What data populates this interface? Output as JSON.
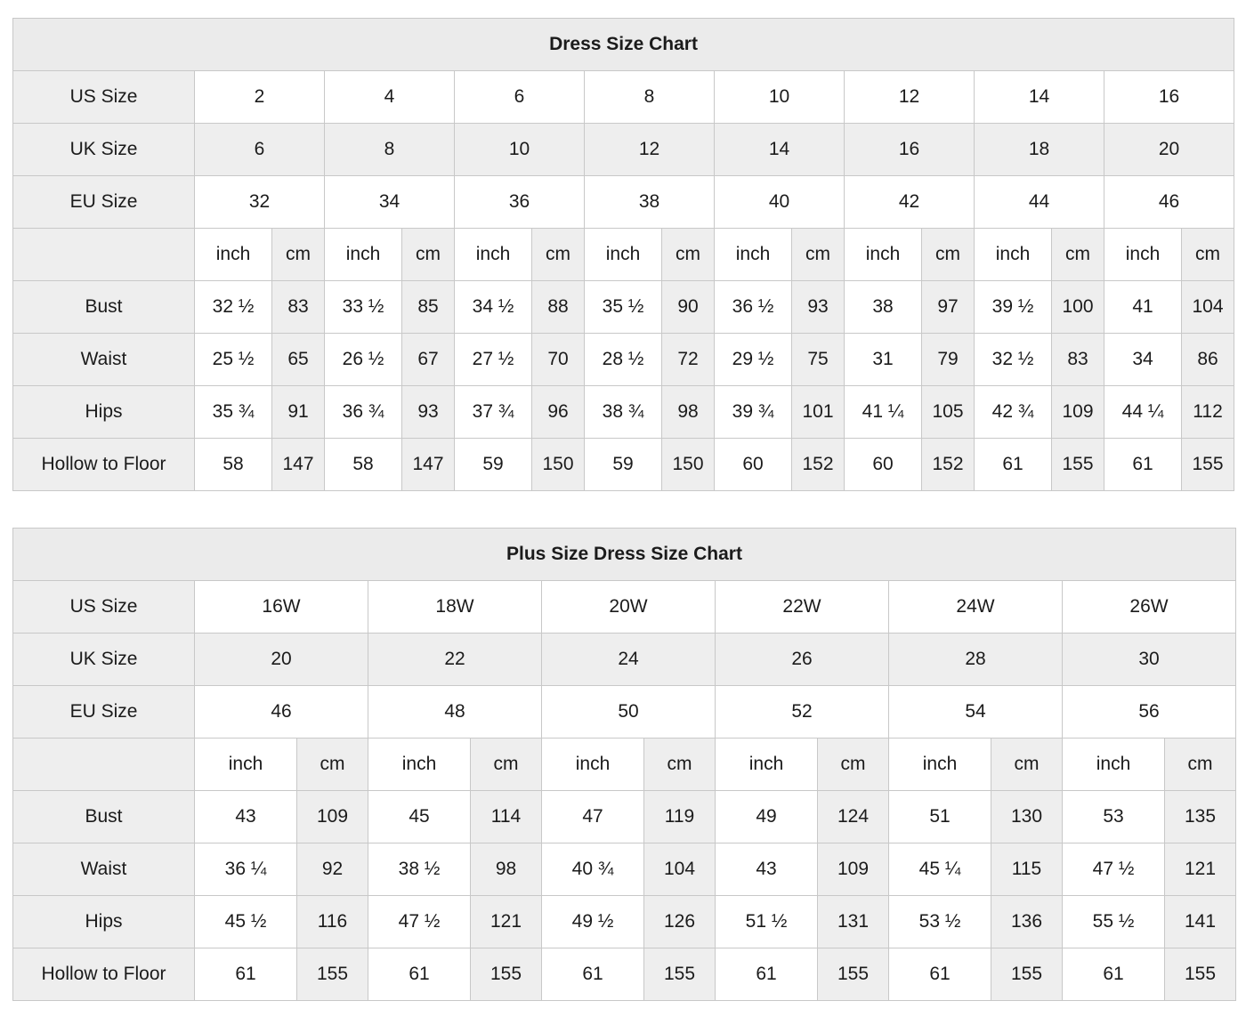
{
  "colors": {
    "cell_shaded": "#eeeeee",
    "cell_plain": "#ffffff",
    "border": "#c8c8c8",
    "text": "#1b1b1b"
  },
  "chart_data": [
    {
      "type": "table",
      "title": "Dress Size Chart",
      "unit_labels": {
        "inch": "inch",
        "cm": "cm"
      },
      "size_rows": [
        {
          "label": "US Size",
          "shaded": false,
          "values": [
            "2",
            "4",
            "6",
            "8",
            "10",
            "12",
            "14",
            "16"
          ]
        },
        {
          "label": "UK Size",
          "shaded": true,
          "values": [
            "6",
            "8",
            "10",
            "12",
            "14",
            "16",
            "18",
            "20"
          ]
        },
        {
          "label": "EU Size",
          "shaded": false,
          "values": [
            "32",
            "34",
            "36",
            "38",
            "40",
            "42",
            "44",
            "46"
          ]
        }
      ],
      "measure_rows": [
        {
          "label": "Bust",
          "inch": [
            "32 ½",
            "33 ½",
            "34 ½",
            "35 ½",
            "36 ½",
            "38",
            "39 ½",
            "41"
          ],
          "cm": [
            "83",
            "85",
            "88",
            "90",
            "93",
            "97",
            "100",
            "104"
          ]
        },
        {
          "label": "Waist",
          "inch": [
            "25 ½",
            "26 ½",
            "27 ½",
            "28 ½",
            "29 ½",
            "31",
            "32 ½",
            "34"
          ],
          "cm": [
            "65",
            "67",
            "70",
            "72",
            "75",
            "79",
            "83",
            "86"
          ]
        },
        {
          "label": "Hips",
          "inch": [
            "35 ¾",
            "36 ¾",
            "37 ¾",
            "38 ¾",
            "39 ¾",
            "41 ¼",
            "42 ¾",
            "44 ¼"
          ],
          "cm": [
            "91",
            "93",
            "96",
            "98",
            "101",
            "105",
            "109",
            "112"
          ]
        },
        {
          "label": "Hollow to Floor",
          "inch": [
            "58",
            "58",
            "59",
            "59",
            "60",
            "60",
            "61",
            "61"
          ],
          "cm": [
            "147",
            "147",
            "150",
            "150",
            "152",
            "152",
            "155",
            "155"
          ]
        }
      ]
    },
    {
      "type": "table",
      "title": "Plus Size Dress Size Chart",
      "unit_labels": {
        "inch": "inch",
        "cm": "cm"
      },
      "size_rows": [
        {
          "label": "US Size",
          "shaded": false,
          "values": [
            "16W",
            "18W",
            "20W",
            "22W",
            "24W",
            "26W"
          ]
        },
        {
          "label": "UK Size",
          "shaded": true,
          "values": [
            "20",
            "22",
            "24",
            "26",
            "28",
            "30"
          ]
        },
        {
          "label": "EU Size",
          "shaded": false,
          "values": [
            "46",
            "48",
            "50",
            "52",
            "54",
            "56"
          ]
        }
      ],
      "measure_rows": [
        {
          "label": "Bust",
          "inch": [
            "43",
            "45",
            "47",
            "49",
            "51",
            "53"
          ],
          "cm": [
            "109",
            "114",
            "119",
            "124",
            "130",
            "135"
          ]
        },
        {
          "label": "Waist",
          "inch": [
            "36 ¼",
            "38 ½",
            "40 ¾",
            "43",
            "45 ¼",
            "47 ½"
          ],
          "cm": [
            "92",
            "98",
            "104",
            "109",
            "115",
            "121"
          ]
        },
        {
          "label": "Hips",
          "inch": [
            "45 ½",
            "47 ½",
            "49 ½",
            "51 ½",
            "53 ½",
            "55 ½"
          ],
          "cm": [
            "116",
            "121",
            "126",
            "131",
            "136",
            "141"
          ]
        },
        {
          "label": "Hollow to Floor",
          "inch": [
            "61",
            "61",
            "61",
            "61",
            "61",
            "61"
          ],
          "cm": [
            "155",
            "155",
            "155",
            "155",
            "155",
            "155"
          ]
        }
      ]
    }
  ]
}
